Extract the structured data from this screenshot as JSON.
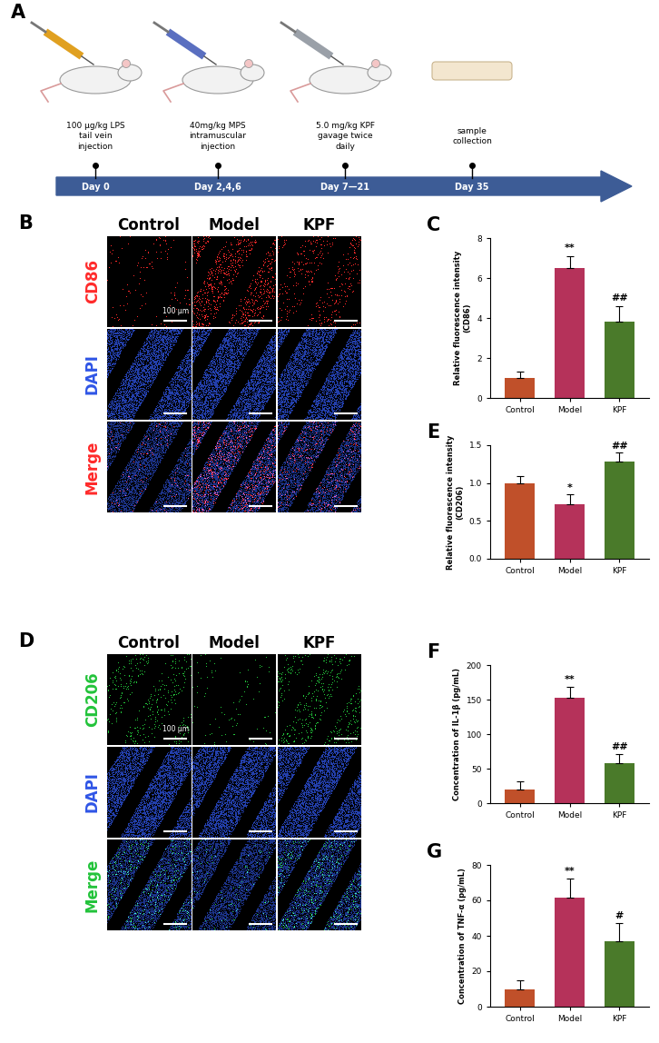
{
  "timeline": {
    "panel": "A",
    "events": [
      {
        "day": "Day 0",
        "text": "100 µg/kg LPS\ntail vein\ninjection"
      },
      {
        "day": "Day 2,4,6",
        "text": "40mg/kg MPS\nintramuscular\ninjection"
      },
      {
        "day": "Day 7—21",
        "text": "5.0 mg/kg KPF\ngavage twice\ndaily"
      },
      {
        "day": "Day 35",
        "text": "sample\ncollection"
      }
    ]
  },
  "micrographs": [
    {
      "panel": "B",
      "groups": [
        "Control",
        "Model",
        "KPF"
      ],
      "channels": [
        {
          "name": "CD86",
          "color": "#ff2a2a"
        },
        {
          "name": "DAPI",
          "color": "#2f55e6"
        },
        {
          "name": "Merge",
          "color": "#ff2a2a"
        }
      ],
      "scale_bar": "100 µm"
    },
    {
      "panel": "D",
      "groups": [
        "Control",
        "Model",
        "KPF"
      ],
      "channels": [
        {
          "name": "CD206",
          "color": "#22c33a"
        },
        {
          "name": "DAPI",
          "color": "#2f55e6"
        },
        {
          "name": "Merge",
          "color": "#22c33a"
        }
      ],
      "scale_bar": "100 µm"
    }
  ],
  "chart_data": [
    {
      "panel": "C",
      "type": "bar",
      "ylabel": "Relative fluorescence intensity\n(CD86)",
      "categories": [
        "Control",
        "Model",
        "KPF"
      ],
      "values": [
        1.0,
        6.5,
        3.8
      ],
      "error": [
        0.3,
        0.6,
        0.8
      ],
      "significance": [
        null,
        "**",
        "##"
      ],
      "colors": [
        "#c0502a",
        "#b5325a",
        "#4a7a2a"
      ],
      "ylim": [
        0,
        8
      ],
      "yticks": [
        0,
        2,
        4,
        6,
        8
      ]
    },
    {
      "panel": "E",
      "type": "bar",
      "ylabel": "Relative fluorescence intensity\n(CD206)",
      "categories": [
        "Control",
        "Model",
        "KPF"
      ],
      "values": [
        1.0,
        0.72,
        1.28
      ],
      "error": [
        0.09,
        0.13,
        0.12
      ],
      "significance": [
        null,
        "*",
        "##"
      ],
      "colors": [
        "#c0502a",
        "#b5325a",
        "#4a7a2a"
      ],
      "ylim": [
        0,
        1.5
      ],
      "yticks": [
        {
          "value": 0,
          "label": "0.0"
        },
        0.5,
        {
          "value": 1,
          "label": "1.0"
        },
        1.5
      ]
    },
    {
      "panel": "F",
      "type": "bar",
      "ylabel": "Concentration of IL-1β (pg/mL)",
      "categories": [
        "Control",
        "Model",
        "KPF"
      ],
      "values": [
        20,
        153,
        58
      ],
      "error": [
        11,
        15,
        13
      ],
      "significance": [
        null,
        "**",
        "##"
      ],
      "colors": [
        "#c0502a",
        "#b5325a",
        "#4a7a2a"
      ],
      "ylim": [
        0,
        200
      ],
      "yticks": [
        0,
        50,
        100,
        150,
        200
      ]
    },
    {
      "panel": "G",
      "type": "bar",
      "ylabel": "Concentration of TNF-α (pg/mL)",
      "categories": [
        "Control",
        "Model",
        "KPF"
      ],
      "values": [
        10,
        61.5,
        37
      ],
      "error": [
        5,
        11,
        10
      ],
      "significance": [
        null,
        "**",
        "#"
      ],
      "colors": [
        "#c0502a",
        "#b5325a",
        "#4a7a2a"
      ],
      "ylim": [
        0,
        80
      ],
      "yticks": [
        0,
        20,
        40,
        60,
        80
      ]
    }
  ]
}
